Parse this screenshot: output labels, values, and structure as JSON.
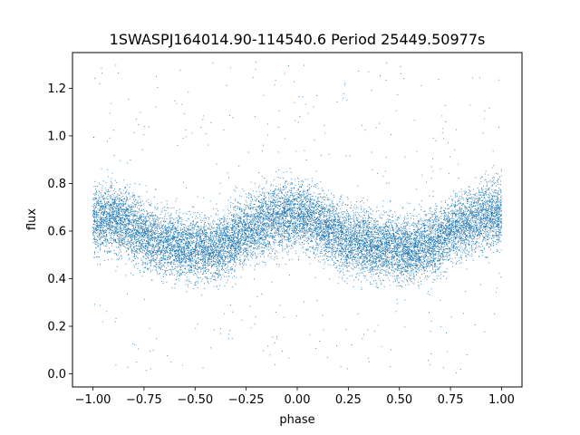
{
  "chart_data": {
    "type": "scatter",
    "title": "1SWASPJ164014.90-114540.6 Period 25449.50977s",
    "xlabel": "phase",
    "ylabel": "flux",
    "xlim": [
      -1.1,
      1.1
    ],
    "ylim": [
      -0.055,
      1.35
    ],
    "x_ticks": [
      -1.0,
      -0.75,
      -0.5,
      -0.25,
      0.0,
      0.25,
      0.5,
      0.75,
      1.0
    ],
    "x_tick_labels": [
      "−1.00",
      "−0.75",
      "−0.50",
      "−0.25",
      "0.00",
      "0.25",
      "0.50",
      "0.75",
      "1.00"
    ],
    "y_ticks": [
      0.0,
      0.2,
      0.4,
      0.6,
      0.8,
      1.0,
      1.2
    ],
    "y_tick_labels": [
      "0.0",
      "0.2",
      "0.4",
      "0.6",
      "0.8",
      "1.0",
      "1.2"
    ],
    "grid": false,
    "marker_color": "#1f77b4",
    "series": [
      {
        "x": [
          -1.0,
          -0.95,
          -0.9,
          -0.85,
          -0.8,
          -0.75,
          -0.7,
          -0.65,
          -0.6,
          -0.55,
          -0.5,
          -0.45,
          -0.4,
          -0.35,
          -0.3,
          -0.25,
          -0.2,
          -0.15,
          -0.1,
          -0.05,
          0.0,
          0.05,
          0.1,
          0.15,
          0.2,
          0.25,
          0.3,
          0.35,
          0.4,
          0.45,
          0.5,
          0.55,
          0.6,
          0.65,
          0.7,
          0.75,
          0.8,
          0.85,
          0.9,
          0.95,
          1.0
        ],
        "y": [
          0.64,
          0.65,
          0.66,
          0.64,
          0.61,
          0.58,
          0.56,
          0.55,
          0.54,
          0.53,
          0.53,
          0.52,
          0.53,
          0.55,
          0.57,
          0.6,
          0.62,
          0.64,
          0.66,
          0.67,
          0.67,
          0.66,
          0.64,
          0.61,
          0.58,
          0.56,
          0.55,
          0.54,
          0.53,
          0.53,
          0.52,
          0.52,
          0.53,
          0.55,
          0.57,
          0.6,
          0.62,
          0.64,
          0.66,
          0.67,
          0.67
        ],
        "spread": 0.09,
        "outlier_range": [
          0.0,
          1.31
        ],
        "approx_point_count": 15000
      }
    ]
  }
}
